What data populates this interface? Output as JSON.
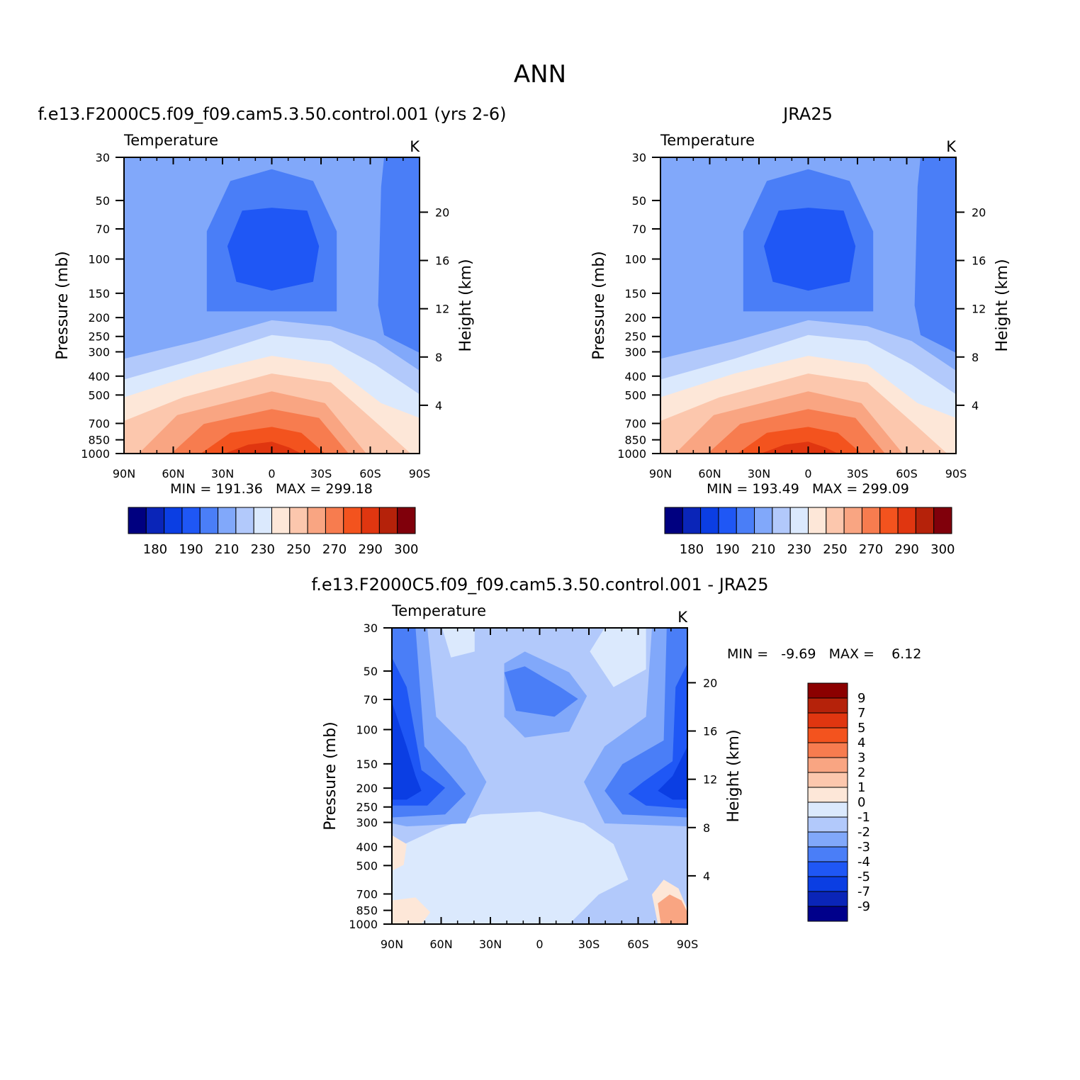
{
  "title": "ANN",
  "colors": {
    "temperature_levels": [
      "#000080",
      "#0a25b8",
      "#0b3ee3",
      "#1f57f5",
      "#4a7ef7",
      "#81a8fa",
      "#b2c9fb",
      "#dbe9fd",
      "#fde7d8",
      "#fcc7ad",
      "#f9a582",
      "#f77c4f",
      "#f3531e",
      "#e03610",
      "#b5220a",
      "#80000b"
    ],
    "difference_levels": [
      "#00008b",
      "#0a25b8",
      "#0b3ee3",
      "#1f57f5",
      "#4a7ef7",
      "#81a8fa",
      "#b2c9fb",
      "#dbe9fd",
      "#fde7d8",
      "#fcc7ad",
      "#f9a582",
      "#f77c4f",
      "#f3531e",
      "#e03610",
      "#b5220a",
      "#8b0000"
    ]
  },
  "chart_data": [
    {
      "type": "heatmap",
      "subtitle": "f.e13.F2000C5.f09_f09.cam5.3.50.control.001 (yrs 2-6)",
      "left_label": "Temperature",
      "unit_label": "K",
      "ylabel": "Pressure (mb)",
      "ylabel_right": "Height (km)",
      "x_ticks": [
        "90N",
        "60N",
        "30N",
        "0",
        "30S",
        "60S",
        "90S"
      ],
      "y_ticks": [
        30,
        50,
        70,
        100,
        150,
        200,
        250,
        300,
        400,
        500,
        700,
        850,
        1000
      ],
      "y_right_ticks": [
        4,
        8,
        12,
        16,
        20
      ],
      "y_scale": "log",
      "xlim": [
        90,
        -90
      ],
      "ylim": [
        1000,
        30
      ],
      "min_label": "MIN = 191.36   MAX = 299.18",
      "colorbar_labels": [
        "180",
        "190",
        "210",
        "230",
        "250",
        "270",
        "290",
        "300"
      ]
    },
    {
      "type": "heatmap",
      "subtitle": "JRA25",
      "left_label": "Temperature",
      "unit_label": "K",
      "ylabel": "Pressure (mb)",
      "ylabel_right": "Height (km)",
      "x_ticks": [
        "90N",
        "60N",
        "30N",
        "0",
        "30S",
        "60S",
        "90S"
      ],
      "y_ticks": [
        30,
        50,
        70,
        100,
        150,
        200,
        250,
        300,
        400,
        500,
        700,
        850,
        1000
      ],
      "y_right_ticks": [
        4,
        8,
        12,
        16,
        20
      ],
      "y_scale": "log",
      "xlim": [
        90,
        -90
      ],
      "ylim": [
        1000,
        30
      ],
      "min_label": "MIN = 193.49   MAX = 299.09",
      "colorbar_labels": [
        "180",
        "190",
        "210",
        "230",
        "250",
        "270",
        "290",
        "300"
      ]
    },
    {
      "type": "heatmap",
      "subtitle": "f.e13.F2000C5.f09_f09.cam5.3.50.control.001 - JRA25",
      "left_label": "Temperature",
      "unit_label": "K",
      "ylabel": "Pressure (mb)",
      "ylabel_right": "Height (km)",
      "x_ticks": [
        "90N",
        "60N",
        "30N",
        "0",
        "30S",
        "60S",
        "90S"
      ],
      "y_ticks": [
        30,
        50,
        70,
        100,
        150,
        200,
        250,
        300,
        400,
        500,
        700,
        850,
        1000
      ],
      "y_right_ticks": [
        4,
        8,
        12,
        16,
        20
      ],
      "y_scale": "log",
      "xlim": [
        90,
        -90
      ],
      "ylim": [
        1000,
        30
      ],
      "min_label": "MIN =   -9.69   MAX =    6.12",
      "colorbar_labels": [
        "9",
        "7",
        "5",
        "4",
        "3",
        "2",
        "1",
        "0",
        "-1",
        "-2",
        "-3",
        "-4",
        "-5",
        "-7",
        "-9"
      ]
    }
  ]
}
